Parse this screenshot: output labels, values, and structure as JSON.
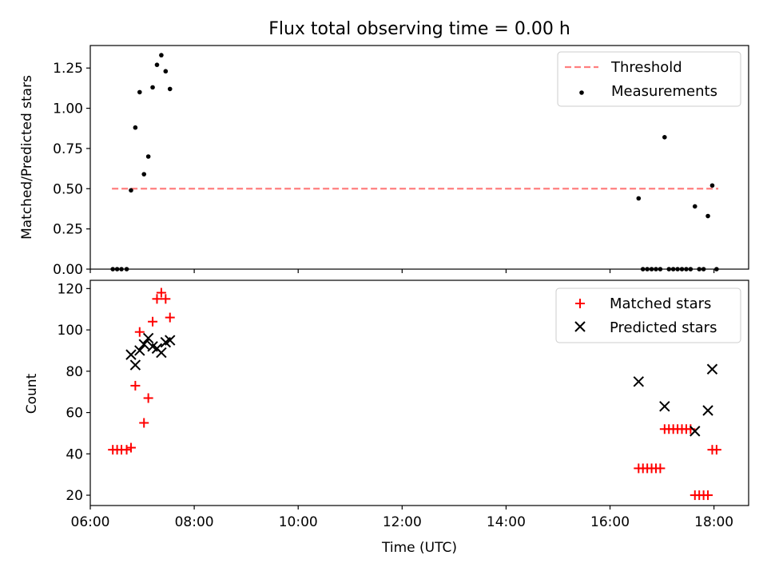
{
  "chart_data": [
    {
      "type": "scatter",
      "title": "Flux total observing time = 0.00 h",
      "xlabel": "",
      "ylabel": "Matched/Predicted stars",
      "xlim": [
        "06:00",
        "18:40"
      ],
      "ylim": [
        0,
        1.39
      ],
      "yticks": [
        0.0,
        0.25,
        0.5,
        0.75,
        1.0,
        1.25
      ],
      "ytick_labels": [
        "0.00",
        "0.25",
        "0.50",
        "0.75",
        "1.00",
        "1.25"
      ],
      "xticks": [
        "06:00",
        "08:00",
        "10:00",
        "12:00",
        "14:00",
        "16:00",
        "18:00"
      ],
      "xtick_labels_shown": false,
      "legend_position": "top-right",
      "threshold": {
        "name": "Threshold",
        "y": 0.5,
        "x_range": [
          "06:25",
          "18:05"
        ],
        "color": "#ff7f7f",
        "style": "dashed"
      },
      "series": [
        {
          "name": "Measurements",
          "marker": "dot",
          "color": "#000000",
          "points": [
            [
              "06:26",
              0.0
            ],
            [
              "06:31",
              0.0
            ],
            [
              "06:36",
              0.0
            ],
            [
              "06:42",
              0.0
            ],
            [
              "06:47",
              0.49
            ],
            [
              "06:52",
              0.88
            ],
            [
              "06:57",
              1.1
            ],
            [
              "07:02",
              0.59
            ],
            [
              "07:07",
              0.7
            ],
            [
              "07:12",
              1.13
            ],
            [
              "07:17",
              1.27
            ],
            [
              "07:22",
              1.33
            ],
            [
              "07:27",
              1.23
            ],
            [
              "07:32",
              1.12
            ],
            [
              "16:33",
              0.44
            ],
            [
              "16:38",
              0.0
            ],
            [
              "16:43",
              0.0
            ],
            [
              "16:48",
              0.0
            ],
            [
              "16:53",
              0.0
            ],
            [
              "16:58",
              0.0
            ],
            [
              "17:03",
              0.82
            ],
            [
              "17:08",
              0.0
            ],
            [
              "17:13",
              0.0
            ],
            [
              "17:18",
              0.0
            ],
            [
              "17:23",
              0.0
            ],
            [
              "17:28",
              0.0
            ],
            [
              "17:33",
              0.0
            ],
            [
              "17:38",
              0.39
            ],
            [
              "17:43",
              0.0
            ],
            [
              "17:48",
              0.0
            ],
            [
              "17:53",
              0.33
            ],
            [
              "17:58",
              0.52
            ],
            [
              "18:03",
              0.0
            ]
          ]
        }
      ]
    },
    {
      "type": "scatter",
      "title": "",
      "xlabel": "Time (UTC)",
      "ylabel": "Count",
      "xlim": [
        "06:00",
        "18:40"
      ],
      "ylim": [
        15,
        124
      ],
      "yticks": [
        20,
        40,
        60,
        80,
        100,
        120
      ],
      "ytick_labels": [
        "20",
        "40",
        "60",
        "80",
        "100",
        "120"
      ],
      "xticks": [
        "06:00",
        "08:00",
        "10:00",
        "12:00",
        "14:00",
        "16:00",
        "18:00"
      ],
      "xtick_labels": [
        "06:00",
        "08:00",
        "10:00",
        "12:00",
        "14:00",
        "16:00",
        "18:00"
      ],
      "legend_position": "top-right",
      "series": [
        {
          "name": "Matched stars",
          "marker": "plus",
          "color": "#ff0000",
          "points": [
            [
              "06:26",
              42
            ],
            [
              "06:31",
              42
            ],
            [
              "06:36",
              42
            ],
            [
              "06:42",
              42
            ],
            [
              "06:47",
              43
            ],
            [
              "06:52",
              73
            ],
            [
              "06:57",
              99
            ],
            [
              "07:02",
              55
            ],
            [
              "07:07",
              67
            ],
            [
              "07:12",
              104
            ],
            [
              "07:17",
              115
            ],
            [
              "07:22",
              118
            ],
            [
              "07:27",
              115
            ],
            [
              "07:32",
              106
            ],
            [
              "16:33",
              33
            ],
            [
              "16:38",
              33
            ],
            [
              "16:43",
              33
            ],
            [
              "16:48",
              33
            ],
            [
              "16:53",
              33
            ],
            [
              "16:58",
              33
            ],
            [
              "17:03",
              52
            ],
            [
              "17:08",
              52
            ],
            [
              "17:13",
              52
            ],
            [
              "17:18",
              52
            ],
            [
              "17:23",
              52
            ],
            [
              "17:28",
              52
            ],
            [
              "17:33",
              52
            ],
            [
              "17:38",
              20
            ],
            [
              "17:43",
              20
            ],
            [
              "17:48",
              20
            ],
            [
              "17:53",
              20
            ],
            [
              "17:58",
              42
            ],
            [
              "18:03",
              42
            ]
          ]
        },
        {
          "name": "Predicted stars",
          "marker": "x",
          "color": "#000000",
          "points": [
            [
              "06:47",
              88
            ],
            [
              "06:52",
              83
            ],
            [
              "06:57",
              90
            ],
            [
              "07:02",
              93
            ],
            [
              "07:07",
              96
            ],
            [
              "07:12",
              92
            ],
            [
              "07:17",
              91
            ],
            [
              "07:22",
              89
            ],
            [
              "07:27",
              94
            ],
            [
              "07:32",
              95
            ],
            [
              "16:33",
              75
            ],
            [
              "17:03",
              63
            ],
            [
              "17:38",
              51
            ],
            [
              "17:53",
              61
            ],
            [
              "17:58",
              81
            ]
          ]
        }
      ]
    }
  ]
}
